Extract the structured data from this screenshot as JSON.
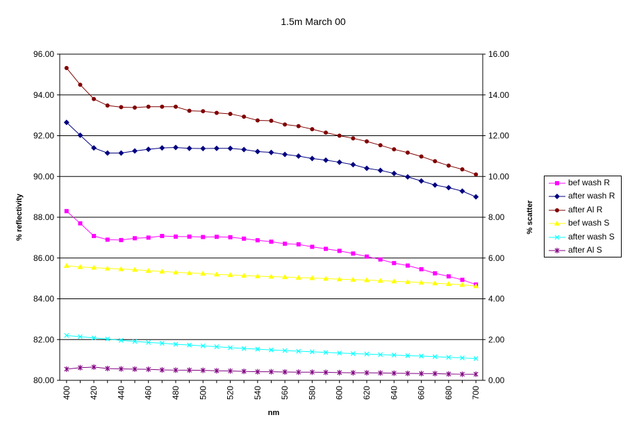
{
  "chart_data": {
    "type": "line",
    "title": "1.5m March 00",
    "xlabel": "nm",
    "ylabel": "% reflectivity",
    "y2label": "% scatter",
    "x": [
      400,
      410,
      420,
      430,
      440,
      450,
      460,
      470,
      480,
      490,
      500,
      510,
      520,
      530,
      540,
      550,
      560,
      570,
      580,
      590,
      600,
      610,
      620,
      630,
      640,
      650,
      660,
      670,
      680,
      690,
      700
    ],
    "xticks": [
      "400",
      "420",
      "440",
      "460",
      "480",
      "500",
      "520",
      "540",
      "560",
      "580",
      "600",
      "620",
      "640",
      "660",
      "680",
      "700"
    ],
    "ylim": [
      80,
      96
    ],
    "yticks": [
      "80.00",
      "82.00",
      "84.00",
      "86.00",
      "88.00",
      "90.00",
      "92.00",
      "94.00",
      "96.00"
    ],
    "y2lim": [
      0,
      16
    ],
    "y2ticks": [
      "0.00",
      "2.00",
      "4.00",
      "6.00",
      "8.00",
      "10.00",
      "12.00",
      "14.00",
      "16.00"
    ],
    "grid": "horizontal",
    "legend_position": "right",
    "series": [
      {
        "name": "bef wash R",
        "axis": "left",
        "color": "#ff00ff",
        "marker": "square",
        "values": [
          88.3,
          87.7,
          87.08,
          86.9,
          86.88,
          86.97,
          87.0,
          87.08,
          87.05,
          87.05,
          87.03,
          87.04,
          87.02,
          86.95,
          86.87,
          86.8,
          86.7,
          86.67,
          86.55,
          86.45,
          86.35,
          86.22,
          86.07,
          85.93,
          85.75,
          85.63,
          85.45,
          85.25,
          85.1,
          84.93,
          84.7
        ]
      },
      {
        "name": "after wash R",
        "axis": "left",
        "color": "#000080",
        "marker": "diamond",
        "values": [
          92.65,
          92.02,
          91.4,
          91.15,
          91.15,
          91.25,
          91.33,
          91.4,
          91.42,
          91.38,
          91.37,
          91.38,
          91.38,
          91.32,
          91.22,
          91.18,
          91.08,
          91.0,
          90.88,
          90.8,
          90.7,
          90.58,
          90.4,
          90.3,
          90.15,
          89.98,
          89.78,
          89.58,
          89.45,
          89.28,
          89.0
        ]
      },
      {
        "name": "after Al R",
        "axis": "left",
        "color": "#800000",
        "marker": "circle",
        "values": [
          95.32,
          94.5,
          93.8,
          93.48,
          93.4,
          93.38,
          93.42,
          93.42,
          93.42,
          93.22,
          93.2,
          93.12,
          93.07,
          92.93,
          92.75,
          92.73,
          92.55,
          92.47,
          92.32,
          92.15,
          92.0,
          91.87,
          91.72,
          91.53,
          91.33,
          91.17,
          90.98,
          90.75,
          90.53,
          90.35,
          90.1
        ]
      },
      {
        "name": "bef wash S",
        "axis": "right",
        "color": "#ffff00",
        "marker": "triangle",
        "values": [
          5.62,
          5.56,
          5.53,
          5.49,
          5.46,
          5.43,
          5.38,
          5.34,
          5.3,
          5.27,
          5.24,
          5.2,
          5.17,
          5.14,
          5.11,
          5.09,
          5.07,
          5.04,
          5.02,
          4.99,
          4.96,
          4.94,
          4.92,
          4.89,
          4.86,
          4.83,
          4.8,
          4.76,
          4.73,
          4.69,
          4.62
        ]
      },
      {
        "name": "after wash S",
        "axis": "right",
        "color": "#00ffff",
        "marker": "x",
        "values": [
          2.2,
          2.14,
          2.08,
          2.03,
          1.96,
          1.91,
          1.86,
          1.82,
          1.77,
          1.73,
          1.69,
          1.65,
          1.6,
          1.56,
          1.53,
          1.49,
          1.46,
          1.43,
          1.4,
          1.37,
          1.34,
          1.31,
          1.29,
          1.26,
          1.24,
          1.21,
          1.19,
          1.16,
          1.13,
          1.1,
          1.07
        ]
      },
      {
        "name": "after Al S",
        "axis": "right",
        "color": "#800080",
        "marker": "star",
        "values": [
          0.55,
          0.62,
          0.65,
          0.58,
          0.56,
          0.55,
          0.54,
          0.51,
          0.5,
          0.5,
          0.49,
          0.47,
          0.46,
          0.44,
          0.42,
          0.42,
          0.41,
          0.4,
          0.4,
          0.39,
          0.38,
          0.37,
          0.37,
          0.36,
          0.35,
          0.34,
          0.33,
          0.33,
          0.31,
          0.3,
          0.3
        ]
      }
    ]
  }
}
